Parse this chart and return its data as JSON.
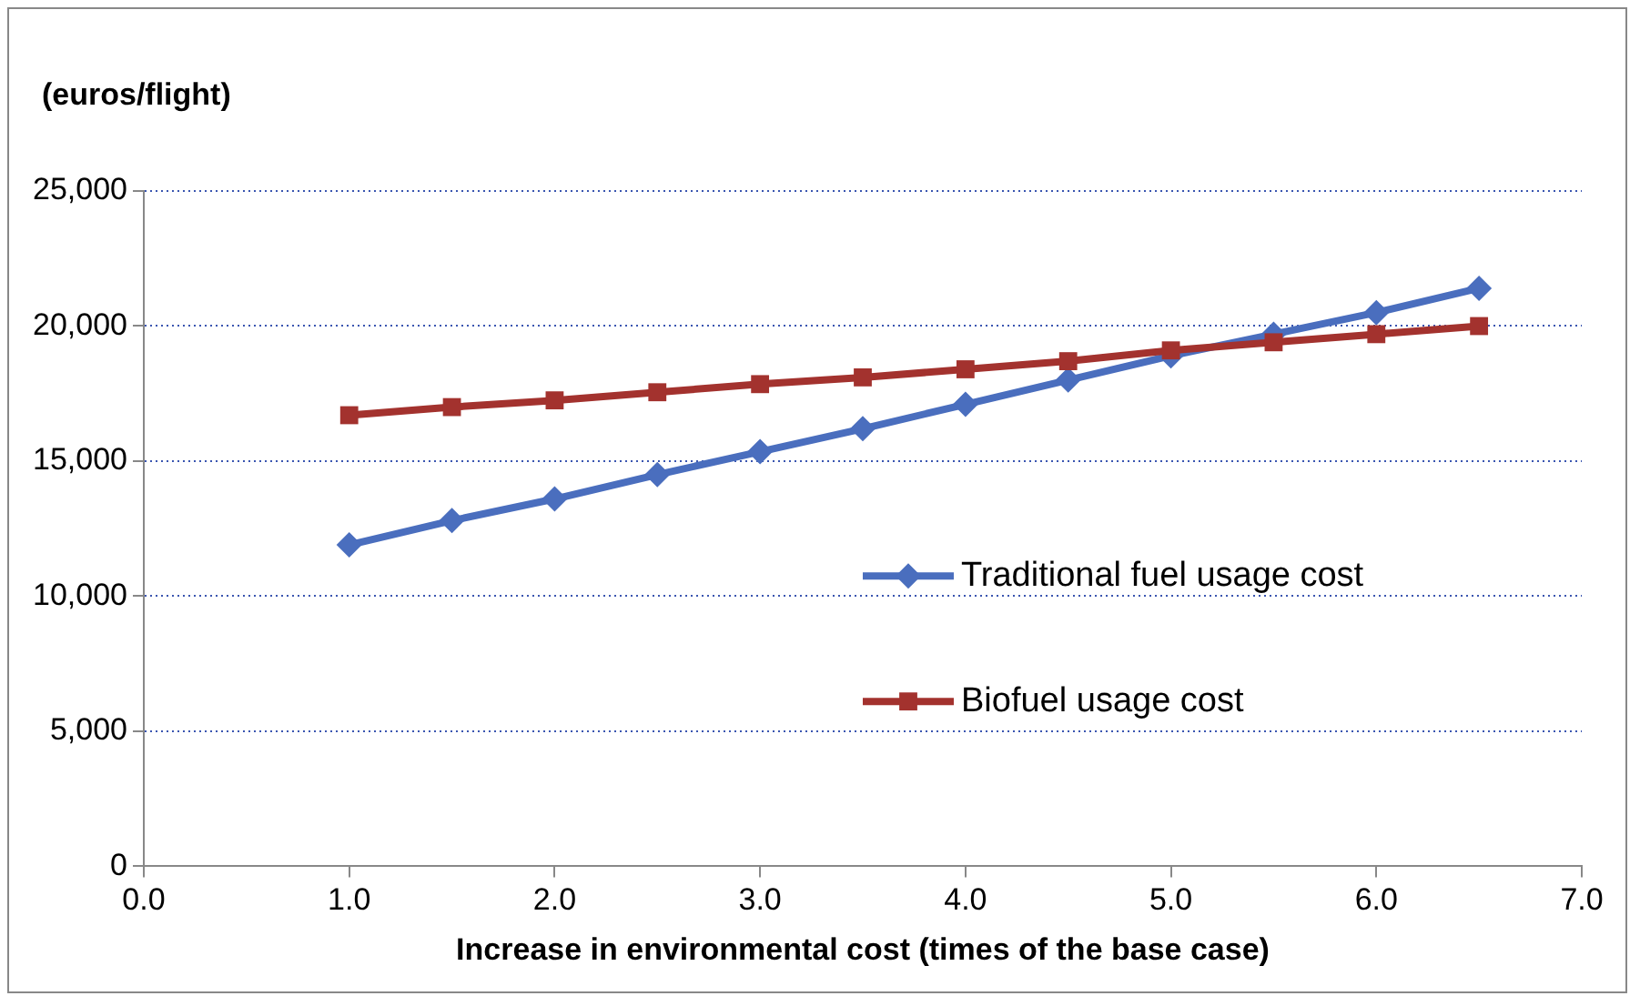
{
  "chart_data": {
    "type": "line",
    "ylabel": "(euros/flight)",
    "xlabel": "Increase in environmental cost (times of the base case)",
    "x": [
      1.0,
      1.5,
      2.0,
      2.5,
      3.0,
      3.5,
      4.0,
      4.5,
      5.0,
      5.5,
      6.0,
      6.5
    ],
    "xlim": [
      0,
      7
    ],
    "xticks": [
      {
        "value": 0,
        "label": "0.0"
      },
      {
        "value": 1,
        "label": "1.0"
      },
      {
        "value": 2,
        "label": "2.0"
      },
      {
        "value": 3,
        "label": "3.0"
      },
      {
        "value": 4,
        "label": "4.0"
      },
      {
        "value": 5,
        "label": "5.0"
      },
      {
        "value": 6,
        "label": "6.0"
      },
      {
        "value": 7,
        "label": "7.0"
      }
    ],
    "ylim": [
      0,
      25000
    ],
    "yticks": [
      0,
      {
        "value": 5000,
        "label": "5,000"
      },
      {
        "value": 10000,
        "label": "10,000"
      },
      {
        "value": 15000,
        "label": "15,000"
      },
      {
        "value": 20000,
        "label": "20,000"
      },
      {
        "value": 25000,
        "label": "25,000"
      }
    ],
    "grid": "y",
    "legend": "right",
    "line_style": "solid",
    "series": [
      {
        "name": "Traditional fuel usage cost",
        "color": "#4a6ebe",
        "marker": "diamond",
        "values": [
          11900,
          12800,
          13600,
          14500,
          15350,
          16200,
          17100,
          18000,
          18900,
          19700,
          20500,
          21400
        ]
      },
      {
        "name": "Biofuel usage cost",
        "color": "#a3322e",
        "marker": "square",
        "values": [
          16700,
          17000,
          17250,
          17550,
          17850,
          18100,
          18400,
          18700,
          19100,
          19400,
          19700,
          20000
        ]
      }
    ]
  }
}
